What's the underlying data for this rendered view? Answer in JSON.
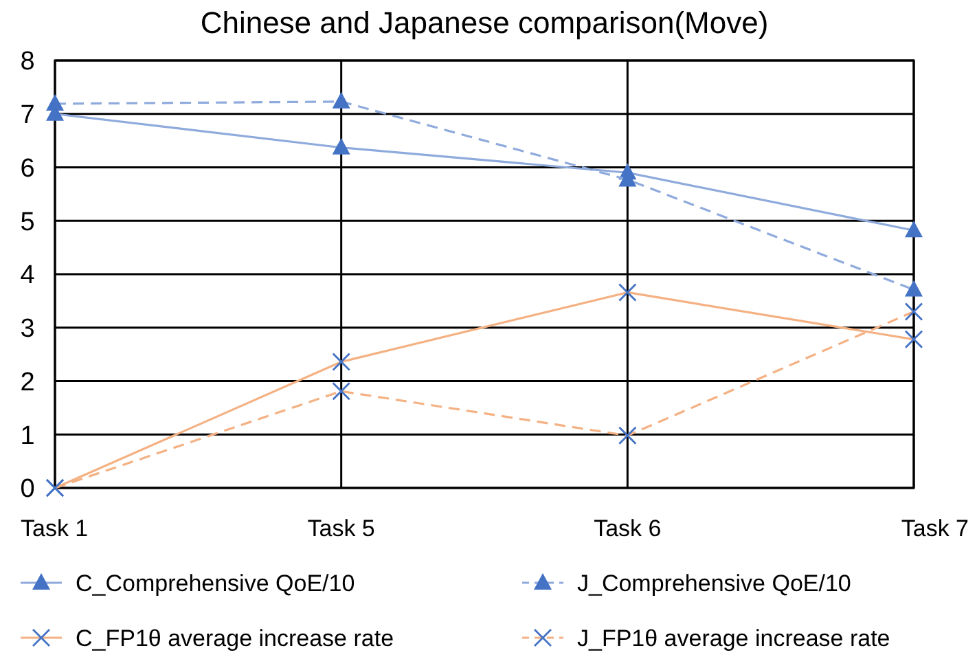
{
  "chart_data": {
    "type": "line",
    "title": "Chinese and Japanese comparison(Move)",
    "categories": [
      "Task 1",
      "Task 5",
      "Task 6",
      "Task 7"
    ],
    "series": [
      {
        "name": "C_Comprehensive QoE/10",
        "color": "#8faadc",
        "values": [
          7.0,
          6.37,
          5.9,
          4.82
        ],
        "marker": "triangle",
        "line_style": "solid"
      },
      {
        "name": "J_Comprehensive QoE/10",
        "color": "#8faadc",
        "values": [
          7.19,
          7.23,
          5.77,
          3.71
        ],
        "marker": "triangle",
        "line_style": "dashed"
      },
      {
        "name": "C_FP1θ average increase rate",
        "color": "#f4b183",
        "values": [
          0,
          2.36,
          3.66,
          2.78
        ],
        "marker": "cross",
        "line_style": "solid"
      },
      {
        "name": "J_FP1θ average increase rate",
        "color": "#f4b183",
        "values": [
          0,
          1.81,
          0.98,
          3.3
        ],
        "marker": "cross",
        "line_style": "dashed"
      }
    ],
    "ylim": [
      0,
      8
    ],
    "yticks": [
      0,
      1,
      2,
      3,
      4,
      5,
      6,
      7,
      8
    ],
    "grid": true,
    "legend": "bottom"
  }
}
